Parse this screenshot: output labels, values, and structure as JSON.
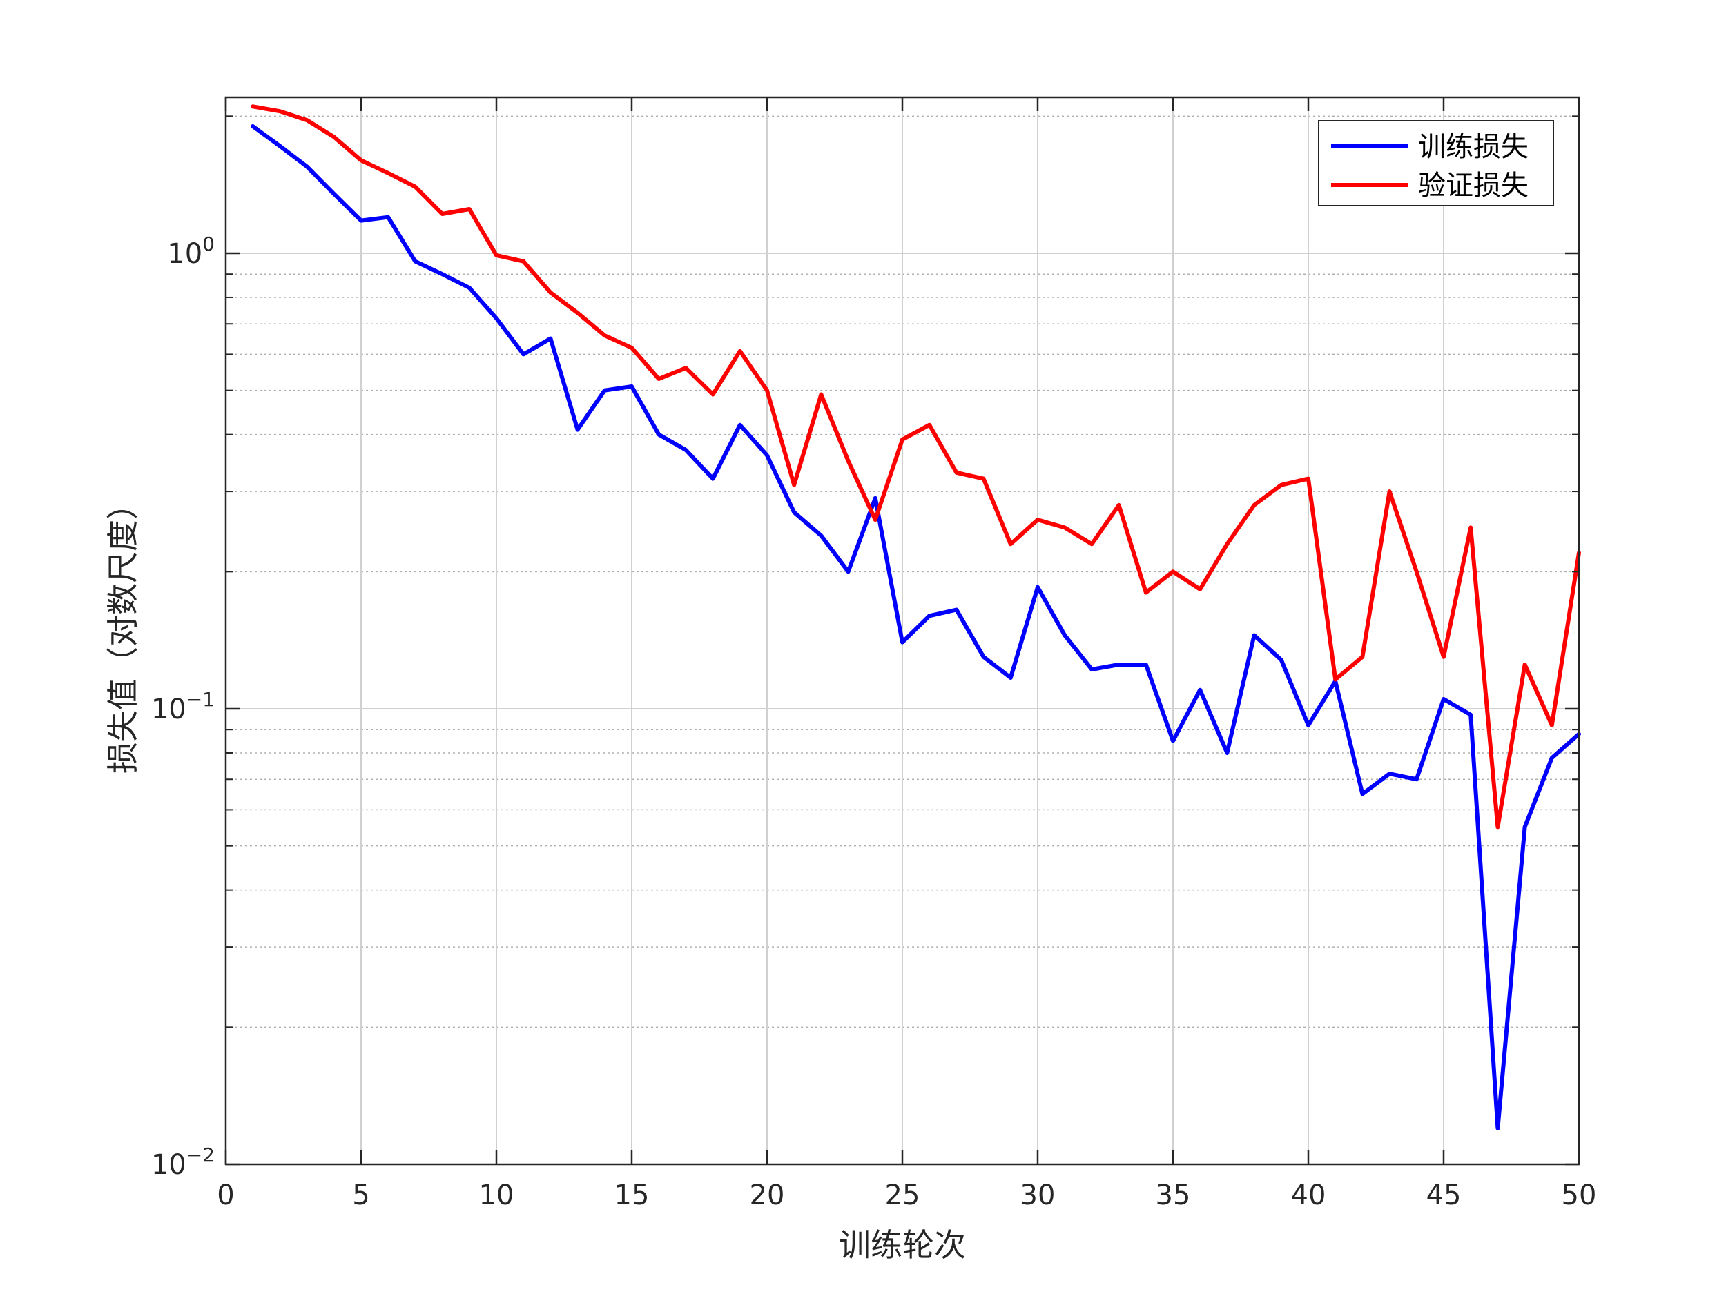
{
  "chart_data": {
    "type": "line",
    "xlabel": "训练轮次",
    "ylabel": "损失值（对数尺度）",
    "xlim": [
      0,
      50
    ],
    "ylim": [
      0.01,
      2.2
    ],
    "yscale": "log",
    "xticks": [
      "0",
      "5",
      "10",
      "15",
      "20",
      "25",
      "30",
      "35",
      "40",
      "45",
      "50"
    ],
    "yticks": [
      {
        "value": 1,
        "base": "10",
        "exp": "0"
      },
      {
        "value": 0.1,
        "base": "10",
        "exp": "−1"
      },
      {
        "value": 0.01,
        "base": "10",
        "exp": "−2"
      }
    ],
    "grid": true,
    "legend_position": "top-right",
    "x": [
      1,
      2,
      3,
      4,
      5,
      6,
      7,
      8,
      9,
      10,
      11,
      12,
      13,
      14,
      15,
      16,
      17,
      18,
      19,
      20,
      21,
      22,
      23,
      24,
      25,
      26,
      27,
      28,
      29,
      30,
      31,
      32,
      33,
      34,
      35,
      36,
      37,
      38,
      39,
      40,
      41,
      42,
      43,
      44,
      45,
      46,
      47,
      48,
      49,
      50
    ],
    "series": [
      {
        "name": "训练损失",
        "color": "#0000ff",
        "values": [
          1.9,
          1.72,
          1.55,
          1.35,
          1.18,
          1.2,
          0.96,
          0.9,
          0.84,
          0.72,
          0.6,
          0.65,
          0.41,
          0.5,
          0.51,
          0.4,
          0.37,
          0.32,
          0.42,
          0.36,
          0.27,
          0.24,
          0.2,
          0.29,
          0.14,
          0.16,
          0.165,
          0.13,
          0.117,
          0.185,
          0.145,
          0.122,
          0.125,
          0.125,
          0.085,
          0.11,
          0.08,
          0.145,
          0.128,
          0.092,
          0.115,
          0.065,
          0.072,
          0.07,
          0.105,
          0.097,
          0.012,
          0.055,
          0.078,
          0.088
        ]
      },
      {
        "name": "验证损失",
        "color": "#ff0000",
        "values": [
          2.1,
          2.05,
          1.96,
          1.8,
          1.6,
          1.5,
          1.4,
          1.22,
          1.25,
          0.99,
          0.96,
          0.82,
          0.74,
          0.66,
          0.62,
          0.53,
          0.56,
          0.49,
          0.61,
          0.5,
          0.31,
          0.49,
          0.35,
          0.26,
          0.39,
          0.42,
          0.33,
          0.32,
          0.23,
          0.26,
          0.25,
          0.23,
          0.28,
          0.18,
          0.2,
          0.183,
          0.23,
          0.28,
          0.31,
          0.32,
          0.116,
          0.13,
          0.3,
          0.2,
          0.13,
          0.25,
          0.055,
          0.125,
          0.092,
          0.22
        ]
      }
    ]
  }
}
